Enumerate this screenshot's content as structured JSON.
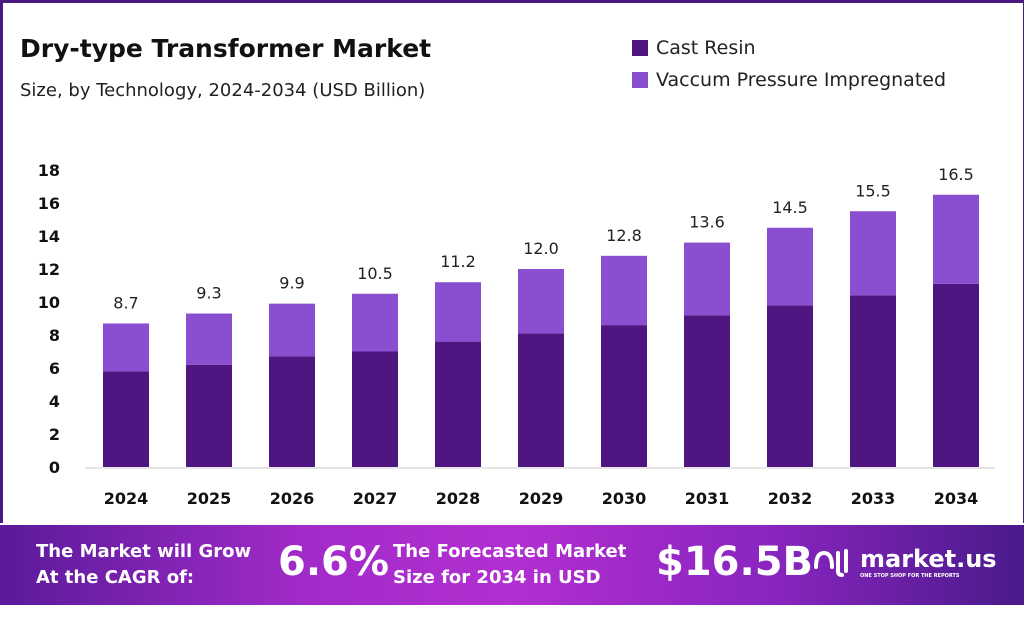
{
  "chart_data": {
    "type": "bar",
    "stacked": true,
    "title": "Dry-type Transformer Market",
    "subtitle": "Size, by Technology, 2024-2034 (USD Billion)",
    "categories": [
      "2024",
      "2025",
      "2026",
      "2027",
      "2028",
      "2029",
      "2030",
      "2031",
      "2032",
      "2033",
      "2034"
    ],
    "totals": [
      "8.7",
      "9.3",
      "9.9",
      "10.5",
      "11.2",
      "12.0",
      "12.8",
      "13.6",
      "14.5",
      "15.5",
      "16.5"
    ],
    "series": [
      {
        "name": "Cast Resin",
        "color": "#4f1580",
        "values": [
          5.8,
          6.2,
          6.7,
          7.0,
          7.6,
          8.1,
          8.6,
          9.2,
          9.8,
          10.4,
          11.1
        ]
      },
      {
        "name": "Vaccum Pressure Impregnated",
        "color": "#8a4fd0",
        "values": [
          2.9,
          3.1,
          3.2,
          3.5,
          3.6,
          3.9,
          4.2,
          4.4,
          4.7,
          5.1,
          5.4
        ]
      }
    ],
    "yticks": [
      "0",
      "2",
      "4",
      "6",
      "8",
      "10",
      "12",
      "14",
      "16",
      "18"
    ],
    "ylim": [
      0,
      18
    ],
    "grid": false,
    "legend": "top-right"
  },
  "footer": {
    "cagr_label_1": "The Market will Grow",
    "cagr_label_2": "At the CAGR of:",
    "cagr_value": "6.6%",
    "forecast_label_1": "The Forecasted Market",
    "forecast_label_2": "Size for 2034 in USD",
    "forecast_value": "$16.5B",
    "logo_name": "market.us",
    "logo_tagline": "ONE STOP SHOP FOR THE REPORTS"
  }
}
